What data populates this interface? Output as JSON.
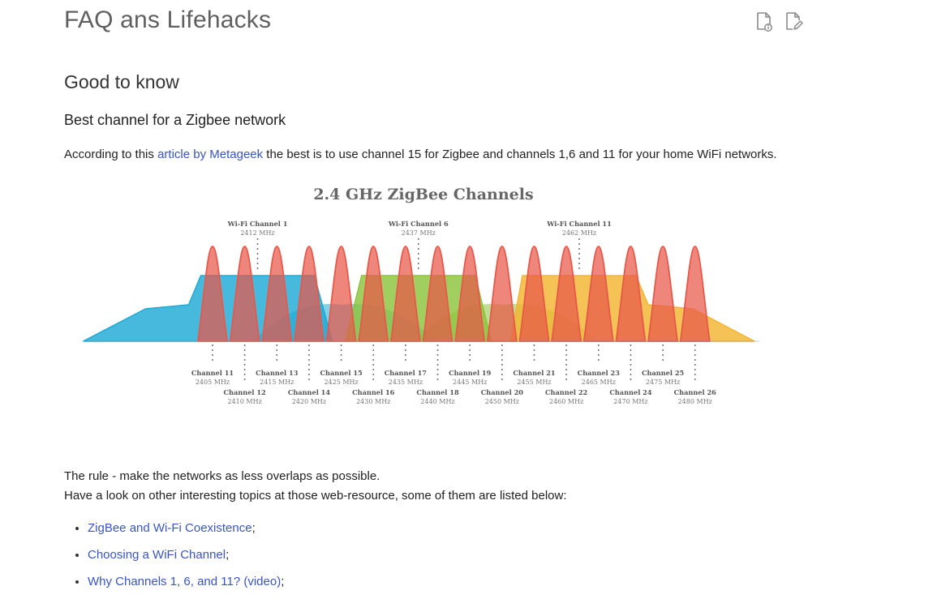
{
  "page": {
    "title": "FAQ ans Lifehacks",
    "actions": [
      {
        "name": "page-info",
        "icon": "document-info-icon"
      },
      {
        "name": "edit-page",
        "icon": "document-edit-icon"
      }
    ]
  },
  "section": {
    "heading": "Good to know",
    "subheading": "Best channel for a Zigbee network",
    "intro_before": "According to this ",
    "intro_link": "article by Metageek",
    "intro_after": " the best is to use channel 15 for Zigbee and channels 1,6 and 11 for your home WiFi networks."
  },
  "chart_data": {
    "type": "area",
    "title": "2.4 GHz ZigBee Channels",
    "xlabel": "",
    "ylabel": "",
    "grid": false,
    "wifi_channels": [
      {
        "name": "Wi-Fi Channel 1",
        "freq": "2412 MHz",
        "center_mhz": 2412,
        "color": "#1eaad4"
      },
      {
        "name": "Wi-Fi Channel 6",
        "freq": "2437 MHz",
        "center_mhz": 2437,
        "color": "#8cc43c"
      },
      {
        "name": "Wi-Fi Channel 11",
        "freq": "2462 MHz",
        "center_mhz": 2462,
        "color": "#f2b530"
      }
    ],
    "zigbee_channels": [
      {
        "name": "Channel 11",
        "freq": "2405 MHz",
        "center_mhz": 2405
      },
      {
        "name": "Channel 12",
        "freq": "2410 MHz",
        "center_mhz": 2410
      },
      {
        "name": "Channel 13",
        "freq": "2415 MHz",
        "center_mhz": 2415
      },
      {
        "name": "Channel 14",
        "freq": "2420 MHz",
        "center_mhz": 2420
      },
      {
        "name": "Channel 15",
        "freq": "2425 MHz",
        "center_mhz": 2425
      },
      {
        "name": "Channel 16",
        "freq": "2430 MHz",
        "center_mhz": 2430
      },
      {
        "name": "Channel 17",
        "freq": "2435 MHz",
        "center_mhz": 2435
      },
      {
        "name": "Channel 18",
        "freq": "2440 MHz",
        "center_mhz": 2440
      },
      {
        "name": "Channel 19",
        "freq": "2445 MHz",
        "center_mhz": 2445
      },
      {
        "name": "Channel 20",
        "freq": "2450 MHz",
        "center_mhz": 2450
      },
      {
        "name": "Channel 21",
        "freq": "2455 MHz",
        "center_mhz": 2455
      },
      {
        "name": "Channel 22",
        "freq": "2460 MHz",
        "center_mhz": 2460
      },
      {
        "name": "Channel 23",
        "freq": "2465 MHz",
        "center_mhz": 2465
      },
      {
        "name": "Channel 24",
        "freq": "2470 MHz",
        "center_mhz": 2470
      },
      {
        "name": "Channel 25",
        "freq": "2475 MHz",
        "center_mhz": 2475
      },
      {
        "name": "Channel 26",
        "freq": "2480 MHz",
        "center_mhz": 2480
      }
    ],
    "zigbee_color": "#e8584a"
  },
  "after_chart": {
    "rule": "The rule - make the networks as less overlaps as possible.",
    "lookup": "Have a look on other interesting topics at those web-resource, some of them are listed below:"
  },
  "links": [
    {
      "label": "ZigBee and Wi-Fi Coexistence",
      "suffix": ";"
    },
    {
      "label": "Choosing a WiFi Channel",
      "suffix": ";"
    },
    {
      "label": "Why Channels 1, 6, and 11? (video)",
      "suffix": ";"
    }
  ]
}
